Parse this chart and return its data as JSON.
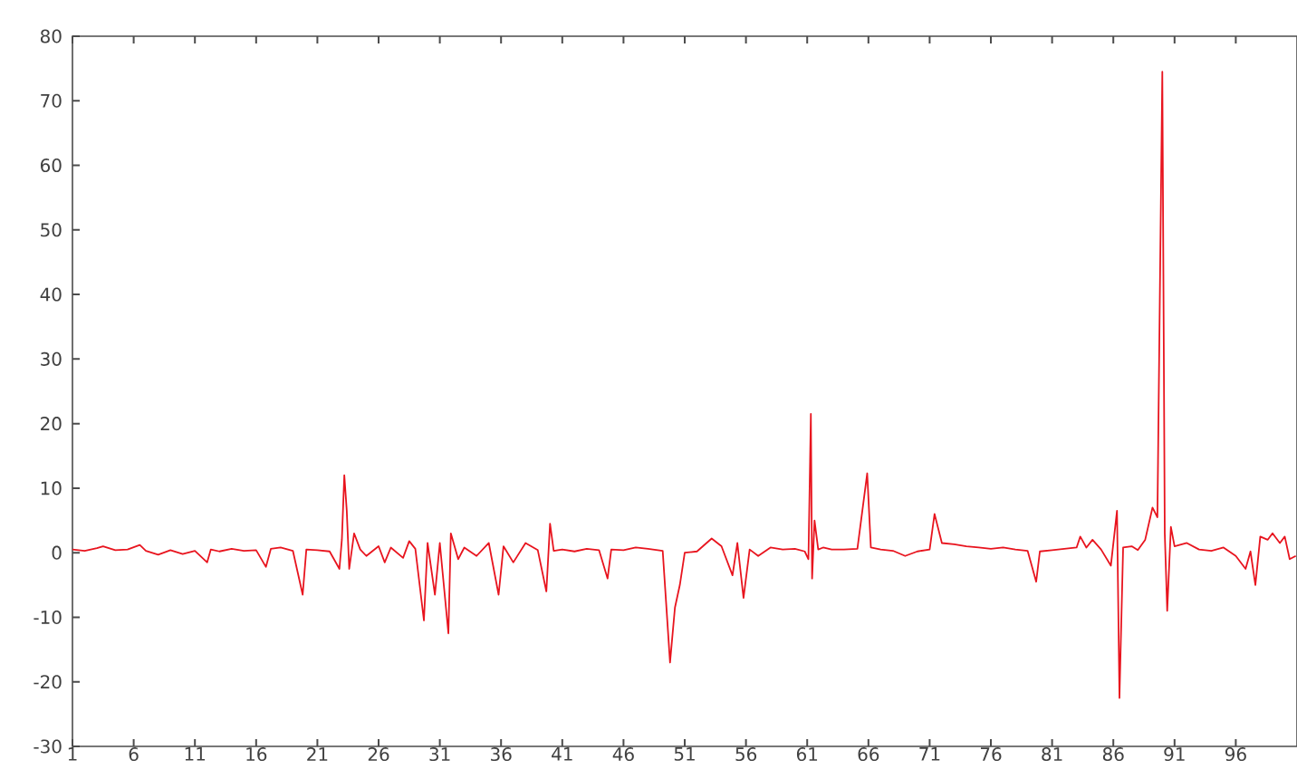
{
  "chart_data": {
    "type": "line",
    "color": "#e8141e",
    "marker": "none",
    "x": [
      1,
      2,
      3,
      3.5,
      4.5,
      5.5,
      6.5,
      7,
      8,
      9,
      10,
      11,
      12,
      12.3,
      13,
      14,
      15,
      16,
      16.8,
      17.2,
      18,
      19,
      19.8,
      20.1,
      21,
      22,
      22.8,
      23.0,
      23.2,
      23.4,
      23.6,
      24,
      24.5,
      25,
      26,
      26.5,
      27,
      28,
      28.5,
      29,
      29.7,
      30,
      30.6,
      31,
      31.7,
      31.9,
      32.5,
      33,
      34,
      35,
      35.8,
      36.2,
      37,
      38,
      39,
      39.7,
      40,
      40.3,
      41,
      42,
      43,
      44,
      44.7,
      45,
      46,
      47,
      48,
      49.2,
      49.8,
      50.2,
      50.6,
      51,
      52,
      53.2,
      54,
      54.9,
      55.3,
      55.8,
      56.3,
      57,
      58,
      59,
      60,
      60.8,
      61.1,
      61.3,
      61.4,
      61.6,
      61.9,
      62.3,
      63,
      64,
      65.1,
      65.9,
      66.2,
      67,
      68,
      69,
      70,
      71,
      71.4,
      72,
      73,
      74,
      75,
      76,
      77,
      78,
      79,
      79.7,
      80,
      81,
      82,
      83,
      83.3,
      83.8,
      84.3,
      85,
      85.8,
      86.3,
      86.5,
      86.8,
      87.5,
      88,
      88.6,
      89.2,
      89.6,
      90.0,
      90.2,
      90.4,
      90.7,
      91,
      92,
      93,
      94,
      95,
      96,
      96.8,
      97.2,
      97.6,
      98,
      98.6,
      99,
      99.6,
      100,
      100.4,
      100.9
    ],
    "values": [
      0.5,
      0.3,
      0.7,
      1.0,
      0.4,
      0.5,
      1.2,
      0.3,
      -0.3,
      0.4,
      -0.2,
      0.3,
      -1.5,
      0.5,
      0.2,
      0.6,
      0.3,
      0.4,
      -2.2,
      0.6,
      0.8,
      0.3,
      -6.5,
      0.5,
      0.4,
      0.2,
      -2.5,
      2.0,
      12.0,
      6.5,
      -2.5,
      3.0,
      0.5,
      -0.5,
      1.0,
      -1.5,
      0.8,
      -0.8,
      1.8,
      0.6,
      -10.5,
      1.5,
      -6.5,
      1.5,
      -12.5,
      3.0,
      -1.0,
      0.8,
      -0.5,
      1.5,
      -6.5,
      1.0,
      -1.5,
      1.5,
      0.4,
      -6.0,
      4.5,
      0.3,
      0.5,
      0.2,
      0.6,
      0.4,
      -4.0,
      0.5,
      0.4,
      0.8,
      0.6,
      0.3,
      -17.0,
      -8.5,
      -5.0,
      0.0,
      0.2,
      2.2,
      1.0,
      -3.5,
      1.5,
      -7.0,
      0.5,
      -0.5,
      0.8,
      0.5,
      0.6,
      0.2,
      -1.0,
      21.5,
      -4.0,
      5.0,
      0.5,
      0.8,
      0.5,
      0.5,
      0.6,
      12.3,
      0.8,
      0.5,
      0.3,
      -0.5,
      0.2,
      0.5,
      6.0,
      1.5,
      1.3,
      1.0,
      0.8,
      0.6,
      0.8,
      0.5,
      0.3,
      -4.5,
      0.2,
      0.4,
      0.6,
      0.8,
      2.5,
      0.8,
      2.0,
      0.5,
      -2.0,
      6.5,
      -22.5,
      0.8,
      1.0,
      0.4,
      2.0,
      7.0,
      5.5,
      74.5,
      3.0,
      -9.0,
      4.0,
      1.0,
      1.5,
      0.5,
      0.3,
      0.8,
      -0.5,
      -2.5,
      0.2,
      -5.0,
      2.5,
      2.0,
      3.0,
      1.5,
      2.5,
      -1.0,
      -0.5
    ],
    "xlim": [
      1,
      101
    ],
    "ylim": [
      -30,
      80
    ],
    "xticks": [
      1,
      6,
      11,
      16,
      21,
      26,
      31,
      36,
      41,
      46,
      51,
      56,
      61,
      66,
      71,
      76,
      81,
      86,
      91,
      96
    ],
    "yticks": [
      -30,
      -20,
      -10,
      0,
      10,
      20,
      30,
      40,
      50,
      60,
      70,
      80
    ]
  }
}
